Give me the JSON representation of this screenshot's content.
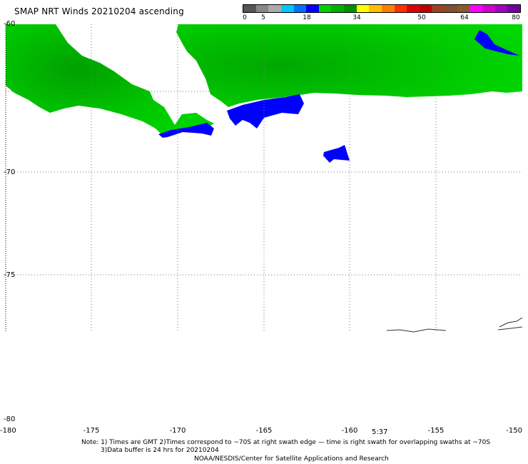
{
  "title": "SMAP NRT Winds 20210204 ascending",
  "colorbar": {
    "labels": [
      "0",
      "5",
      "18",
      "34",
      "50",
      "64",
      "80"
    ],
    "segments": [
      {
        "color": "#555555"
      },
      {
        "color": "#888888"
      },
      {
        "color": "#aaaaaa"
      },
      {
        "color": "#00c8ff"
      },
      {
        "color": "#0070ff"
      },
      {
        "color": "#0000ff"
      },
      {
        "color": "#00d000"
      },
      {
        "color": "#00b000"
      },
      {
        "color": "#009000"
      },
      {
        "color": "#ffff00"
      },
      {
        "color": "#ffc000"
      },
      {
        "color": "#ff8000"
      },
      {
        "color": "#ff3000"
      },
      {
        "color": "#e00000"
      },
      {
        "color": "#c00000"
      },
      {
        "color": "#a04020"
      },
      {
        "color": "#805030"
      },
      {
        "color": "#8b5a2b"
      },
      {
        "color": "#ff00ff"
      },
      {
        "color": "#d000d0"
      },
      {
        "color": "#a000c0"
      },
      {
        "color": "#7000a0"
      }
    ]
  },
  "map": {
    "lon_range": [
      -180,
      -150
    ],
    "lat_range": [
      -80,
      -60
    ],
    "lon_ticks": [
      "-180",
      "-175",
      "-170",
      "-165",
      "-160",
      "-155",
      "-150"
    ],
    "lat_ticks": [
      "-60",
      "-65",
      "-70",
      "-75",
      "-80"
    ],
    "lat_tick_labels_shown": [
      "-60",
      "-70",
      "-75",
      "-80"
    ],
    "colors": {
      "green": "#00cc00",
      "dark_green": "#00a000",
      "blue": "#0000ff"
    }
  },
  "time_label": "5:37",
  "notes": {
    "line1": "Note: 1) Times are GMT 2)Times correspond to ~70S at right swath edge — time is right swath for overlapping swaths at ~70S",
    "line2": "3)Data buffer is 24 hrs for 20210204",
    "line3": "NOAA/NESDIS/Center for Satellite Applications and Research"
  }
}
